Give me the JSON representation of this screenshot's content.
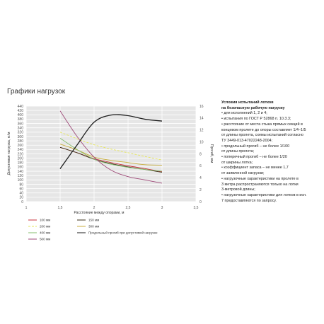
{
  "title": "Графики нагрузок",
  "chart_data": {
    "type": "line",
    "ylabel": "Допустимая нагрузка, кг/м",
    "y2label": "Прогиб, мм",
    "xlabel": "Расстояние между опорами, м",
    "x_ticks": [
      "1",
      "1,5",
      "2",
      "2,5",
      "3",
      "3,5"
    ],
    "x_tick_values": [
      1,
      1.5,
      2,
      2.5,
      3,
      3.5
    ],
    "y_ticks": [
      "0",
      "20",
      "40",
      "60",
      "80",
      "100",
      "120",
      "140",
      "160",
      "180",
      "200",
      "220",
      "240",
      "260",
      "280",
      "300",
      "320",
      "340",
      "360",
      "380",
      "400",
      "420",
      "440"
    ],
    "y_tick_values": [
      0,
      20,
      40,
      60,
      80,
      100,
      120,
      140,
      160,
      180,
      200,
      220,
      240,
      260,
      280,
      300,
      320,
      340,
      360,
      380,
      400,
      420,
      440
    ],
    "y2_ticks": [
      "0",
      "2",
      "4",
      "6",
      "8",
      "10",
      "12",
      "14",
      "16"
    ],
    "y2_tick_values": [
      0,
      2,
      4,
      6,
      8,
      10,
      12,
      14,
      16
    ],
    "xlim": [
      1,
      3.5
    ],
    "ylim": [
      0,
      440
    ],
    "y2lim": [
      0,
      16
    ],
    "grid": true,
    "legend_position": "bottom",
    "series": [
      {
        "name": "100 мм",
        "color": "#c8323c",
        "dash": "",
        "x": [
          1.5,
          1.75,
          2,
          2.25,
          2.5,
          2.75,
          3
        ],
        "y": [
          250,
          225,
          198,
          180,
          165,
          152,
          138
        ]
      },
      {
        "name": "150 мм",
        "color": "#3b2f18",
        "dash": "",
        "x": [
          1.5,
          1.75,
          2,
          2.25,
          2.5,
          2.75,
          3
        ],
        "y": [
          250,
          225,
          195,
          175,
          160,
          148,
          135
        ]
      },
      {
        "name": "200 мм",
        "color": "#e6e65a",
        "dash": "3 2",
        "x": [
          1.5,
          1.75,
          2,
          2.25,
          2.5,
          2.75,
          3
        ],
        "y": [
          320,
          290,
          262,
          242,
          225,
          208,
          192
        ]
      },
      {
        "name": "300 мм",
        "color": "#c8ae3c",
        "dash": "",
        "x": [
          1.5,
          1.75,
          2,
          2.25,
          2.5,
          2.75,
          3
        ],
        "y": [
          265,
          238,
          205,
          190,
          180,
          170,
          168
        ]
      },
      {
        "name": "400 мм",
        "color": "#86be6e",
        "dash": "",
        "x": [
          1.5,
          1.75,
          2,
          2.25,
          2.5,
          2.75,
          3
        ],
        "y": [
          292,
          240,
          195,
          172,
          158,
          148,
          140
        ]
      },
      {
        "name": "500 мм",
        "color": "#9e4a78",
        "dash": "",
        "x": [
          1.5,
          1.75,
          2,
          2.25,
          2.5,
          2.75,
          3
        ],
        "y": [
          418,
          300,
          205,
          145,
          115,
          100,
          85
        ]
      },
      {
        "name": "Продольный прогиб при допустимой нагрузке",
        "color": "#1e1e1e",
        "dash": "",
        "axis": "right",
        "x": [
          1.5,
          1.75,
          2,
          2.25,
          2.5,
          2.75,
          3
        ],
        "y": [
          5.5,
          9.5,
          13.3,
          14.5,
          14.4,
          13.8,
          13.5
        ]
      }
    ],
    "legend_order": [
      0,
      1,
      2,
      3,
      4,
      5,
      6
    ]
  },
  "notes": {
    "heading": "Условия испытаний лотков\nна безопасную рабочую нагрузку",
    "items": [
      "• для исполнений 1, 2 и 4;",
      "• испытания по ГОСТ Р 52868 п. 10.3.3;",
      "• расстояние от места стыка прямых секций в\nконцевом пролете до опоры составляет 1/4–1/5\nот длины пролета, схемы испытаний согласно\nТУ 3449-013-47022248-2004;",
      "• продольный прогиб – не более 1/100\nот длины пролета;",
      "• поперечный прогиб – не более 1/20\nот ширины лотка;",
      "• коэффициент запаса – не менее 1,7\nот заявленной нагрузки;",
      "• нагрузочные характеристики на пролете в\n3 метра распространяются только на лотки\n3-метровой длины;",
      "• нагрузочные характеристики для лотков в исп.\n7 предоставляются по запросу."
    ]
  }
}
